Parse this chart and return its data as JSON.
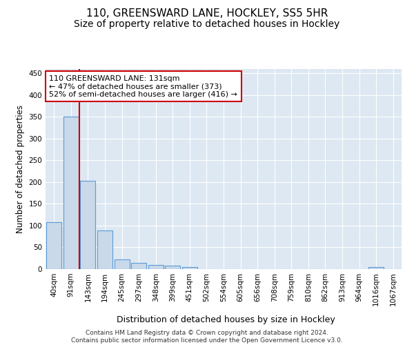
{
  "title1": "110, GREENSWARD LANE, HOCKLEY, SS5 5HR",
  "title2": "Size of property relative to detached houses in Hockley",
  "xlabel": "Distribution of detached houses by size in Hockley",
  "ylabel": "Number of detached properties",
  "bar_labels": [
    "40sqm",
    "91sqm",
    "143sqm",
    "194sqm",
    "245sqm",
    "297sqm",
    "348sqm",
    "399sqm",
    "451sqm",
    "502sqm",
    "554sqm",
    "605sqm",
    "656sqm",
    "708sqm",
    "759sqm",
    "810sqm",
    "862sqm",
    "913sqm",
    "964sqm",
    "1016sqm",
    "1067sqm"
  ],
  "bar_values": [
    108,
    350,
    203,
    89,
    23,
    15,
    9,
    8,
    5,
    0,
    0,
    0,
    0,
    0,
    0,
    0,
    0,
    0,
    0,
    5,
    0
  ],
  "bar_color": "#c9d9ea",
  "bar_edge_color": "#5b9bd5",
  "annotation_text": "110 GREENSWARD LANE: 131sqm\n← 47% of detached houses are smaller (373)\n52% of semi-detached houses are larger (416) →",
  "annotation_box_color": "#ffffff",
  "annotation_box_edge": "#cc0000",
  "red_line_color": "#cc0000",
  "ylim": [
    0,
    460
  ],
  "yticks": [
    0,
    50,
    100,
    150,
    200,
    250,
    300,
    350,
    400,
    450
  ],
  "background_color": "#dde8f3",
  "footer_text": "Contains HM Land Registry data © Crown copyright and database right 2024.\nContains public sector information licensed under the Open Government Licence v3.0.",
  "title1_fontsize": 11,
  "title2_fontsize": 10,
  "xlabel_fontsize": 9,
  "ylabel_fontsize": 8.5,
  "tick_fontsize": 7.5,
  "annotation_fontsize": 8,
  "footer_fontsize": 6.5
}
